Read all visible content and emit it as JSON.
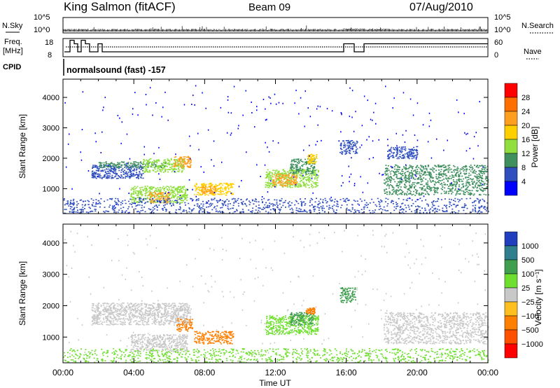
{
  "header": {
    "site": "King Salmon (fitACF)",
    "beam": "Beam 09",
    "date": "07/Aug/2010"
  },
  "strip": {
    "nsky_label": "N.Sky",
    "nsearch_label": "N.Search",
    "freq_label_1": "Freq.",
    "freq_label_2": "[MHz]",
    "nave_label": "Nave",
    "cpid_label": "CPID",
    "cpid_value": "normalsound (fast) -157",
    "noise_ticks": [
      "10^5",
      "10^0"
    ],
    "freq_ticks": [
      "18",
      "8"
    ],
    "nave_ticks": [
      "60",
      "0"
    ]
  },
  "colorbars": {
    "power": {
      "label": "Power [dB]",
      "ticks": [
        "28",
        "24",
        "20",
        "16",
        "12",
        "8",
        "4"
      ],
      "colors": [
        "#ff0000",
        "#ff6f00",
        "#ff9f1f",
        "#ffcf00",
        "#8fdf3f",
        "#3f8f5f",
        "#2f4fbf",
        "#0000ff"
      ]
    },
    "velocity": {
      "label": "Velocity [m s⁻¹]",
      "ticks": [
        "1000",
        "500",
        "100",
        "25",
        "−25",
        "−100",
        "−500",
        "−1000"
      ],
      "colors": [
        "#1f3fbf",
        "#2f7f8f",
        "#3f9f4f",
        "#6fdf2f",
        "#c8c8c8",
        "#ffbf1f",
        "#ff7f00",
        "#ff4f00",
        "#ff0000"
      ]
    }
  },
  "chart_data": [
    {
      "type": "heatmap",
      "title": "Power",
      "xlabel": "",
      "ylabel": "Slant Range [km]",
      "xlim": [
        "00:00",
        "24:00"
      ],
      "ylim": [
        180,
        4600
      ],
      "x_ticks": [
        "00:00",
        "04:00",
        "08:00",
        "12:00",
        "16:00",
        "20:00",
        "00:00"
      ],
      "y_ticks": [
        1000,
        2000,
        3000,
        4000
      ],
      "colorbar": "Power [dB]",
      "features": [
        {
          "t": [
            1.6,
            4.5
          ],
          "r": [
            1350,
            1800
          ],
          "value_db": 7
        },
        {
          "t": [
            2.0,
            5.8
          ],
          "r": [
            1700,
            1900
          ],
          "value_db": 9
        },
        {
          "t": [
            4.5,
            6.8
          ],
          "r": [
            1550,
            2000
          ],
          "value_db": 16
        },
        {
          "t": [
            6.2,
            7.2
          ],
          "r": [
            1700,
            2100
          ],
          "value_db": 20
        },
        {
          "t": [
            3.8,
            7.0
          ],
          "r": [
            550,
            1100
          ],
          "value_db": 12
        },
        {
          "t": [
            4.8,
            6.0
          ],
          "r": [
            550,
            900
          ],
          "value_db": 22
        },
        {
          "t": [
            7.4,
            9.6
          ],
          "r": [
            800,
            1200
          ],
          "value_db": 14
        },
        {
          "t": [
            7.8,
            8.6
          ],
          "r": [
            850,
            1100
          ],
          "value_db": 20
        },
        {
          "t": [
            11.4,
            14.4
          ],
          "r": [
            1050,
            1650
          ],
          "value_db": 14
        },
        {
          "t": [
            11.8,
            13.2
          ],
          "r": [
            1100,
            1500
          ],
          "value_db": 22
        },
        {
          "t": [
            12.8,
            14.2
          ],
          "r": [
            1500,
            2000
          ],
          "value_db": 13
        },
        {
          "t": [
            13.8,
            14.3
          ],
          "r": [
            1850,
            2150
          ],
          "value_db": 18
        },
        {
          "t": [
            15.6,
            16.6
          ],
          "r": [
            2150,
            2600
          ],
          "value_db": 7
        },
        {
          "t": [
            18.1,
            24.0
          ],
          "r": [
            800,
            1800
          ],
          "value_db": 6
        },
        {
          "t": [
            18.3,
            20.0
          ],
          "r": [
            2000,
            2400
          ],
          "value_db": 5
        },
        {
          "t": [
            0.0,
            24.0
          ],
          "r": [
            200,
            700
          ],
          "value_db": 5
        }
      ]
    },
    {
      "type": "heatmap",
      "title": "Velocity",
      "xlabel": "Time UT",
      "ylabel": "Slant Range [km]",
      "xlim": [
        "00:00",
        "24:00"
      ],
      "ylim": [
        180,
        4600
      ],
      "x_ticks": [
        "00:00",
        "04:00",
        "08:00",
        "12:00",
        "16:00",
        "20:00",
        "00:00"
      ],
      "y_ticks": [
        1000,
        2000,
        3000,
        4000
      ],
      "colorbar": "Velocity [m s⁻¹]",
      "features": [
        {
          "t": [
            1.6,
            7.2
          ],
          "r": [
            1400,
            2100
          ],
          "value_ms": 0
        },
        {
          "t": [
            3.8,
            7.0
          ],
          "r": [
            550,
            1100
          ],
          "value_ms": 10
        },
        {
          "t": [
            6.4,
            7.3
          ],
          "r": [
            1200,
            1600
          ],
          "value_ms": -300
        },
        {
          "t": [
            7.4,
            9.6
          ],
          "r": [
            800,
            1200
          ],
          "value_ms": -400
        },
        {
          "t": [
            11.4,
            14.4
          ],
          "r": [
            1100,
            1700
          ],
          "value_ms": 60
        },
        {
          "t": [
            12.8,
            14.2
          ],
          "r": [
            1400,
            1800
          ],
          "value_ms": 300
        },
        {
          "t": [
            13.7,
            14.2
          ],
          "r": [
            1750,
            1950
          ],
          "value_ms": -300
        },
        {
          "t": [
            15.6,
            16.5
          ],
          "r": [
            2100,
            2600
          ],
          "value_ms": 120
        },
        {
          "t": [
            18.1,
            24.0
          ],
          "r": [
            800,
            1800
          ],
          "value_ms": 0
        },
        {
          "t": [
            0.0,
            24.0
          ],
          "r": [
            200,
            650
          ],
          "value_ms": 40
        }
      ]
    }
  ]
}
